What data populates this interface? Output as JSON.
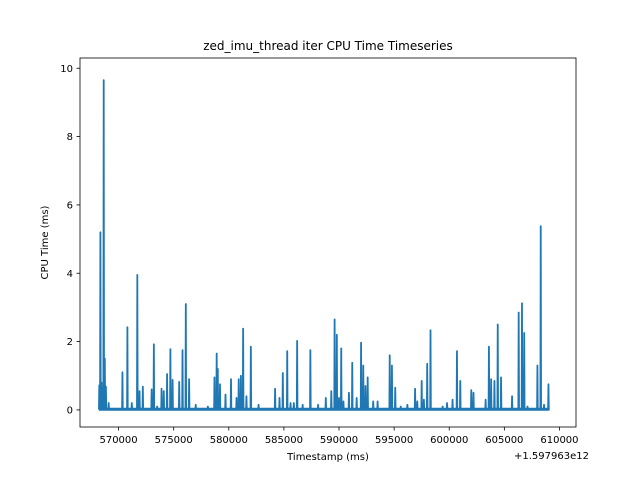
{
  "chart_data": {
    "type": "line",
    "title": "zed_imu_thread iter CPU Time Timeseries",
    "xlabel": "Timestamp (ms)",
    "ylabel": "CPU Time (ms)",
    "x_offset_label": "+1.597963e12",
    "xlim": [
      566500,
      611500
    ],
    "ylim": [
      -0.5,
      10.3
    ],
    "x_ticks": [
      570000,
      575000,
      580000,
      585000,
      590000,
      595000,
      600000,
      605000,
      610000
    ],
    "x_tick_labels": [
      "570000",
      "575000",
      "580000",
      "585000",
      "590000",
      "595000",
      "600000",
      "605000",
      "610000"
    ],
    "y_ticks": [
      0,
      2,
      4,
      6,
      8,
      10
    ],
    "y_tick_labels": [
      "0",
      "2",
      "4",
      "6",
      "8",
      "10"
    ],
    "grid": false,
    "line_color": "#1f77b4",
    "series": [
      {
        "x_range": [
          568200,
          609100
        ],
        "baseline": 0.02,
        "spikes": [
          [
            568250,
            0.72
          ],
          [
            568350,
            5.2
          ],
          [
            568450,
            0.8
          ],
          [
            568550,
            0.65
          ],
          [
            568650,
            9.65
          ],
          [
            568750,
            1.5
          ],
          [
            568850,
            0.68
          ],
          [
            569100,
            0.2
          ],
          [
            570350,
            1.1
          ],
          [
            570800,
            2.42
          ],
          [
            571200,
            0.2
          ],
          [
            571700,
            3.95
          ],
          [
            571900,
            0.55
          ],
          [
            572200,
            0.68
          ],
          [
            573000,
            0.6
          ],
          [
            573200,
            1.92
          ],
          [
            573500,
            0.1
          ],
          [
            573900,
            0.62
          ],
          [
            574100,
            0.55
          ],
          [
            574400,
            1.05
          ],
          [
            574700,
            1.78
          ],
          [
            574900,
            0.88
          ],
          [
            575500,
            0.82
          ],
          [
            575800,
            1.75
          ],
          [
            576100,
            3.1
          ],
          [
            576400,
            0.9
          ],
          [
            577000,
            0.15
          ],
          [
            578100,
            0.1
          ],
          [
            578700,
            0.95
          ],
          [
            578900,
            1.65
          ],
          [
            579000,
            1.2
          ],
          [
            579200,
            0.75
          ],
          [
            579700,
            0.45
          ],
          [
            580200,
            0.9
          ],
          [
            580700,
            0.35
          ],
          [
            580900,
            0.9
          ],
          [
            581100,
            1.0
          ],
          [
            581300,
            2.38
          ],
          [
            581600,
            0.4
          ],
          [
            582000,
            1.85
          ],
          [
            582700,
            0.15
          ],
          [
            584200,
            0.62
          ],
          [
            584600,
            0.35
          ],
          [
            584900,
            1.08
          ],
          [
            585300,
            1.72
          ],
          [
            585600,
            0.2
          ],
          [
            585900,
            0.2
          ],
          [
            586200,
            2.02
          ],
          [
            586700,
            0.15
          ],
          [
            587400,
            1.75
          ],
          [
            588100,
            0.15
          ],
          [
            588800,
            0.35
          ],
          [
            589300,
            0.55
          ],
          [
            589600,
            2.65
          ],
          [
            589800,
            2.2
          ],
          [
            590000,
            0.35
          ],
          [
            590200,
            1.8
          ],
          [
            590400,
            0.25
          ],
          [
            590900,
            0.5
          ],
          [
            591200,
            1.38
          ],
          [
            591600,
            0.35
          ],
          [
            592000,
            1.97
          ],
          [
            592200,
            1.3
          ],
          [
            592400,
            0.7
          ],
          [
            592600,
            0.95
          ],
          [
            593100,
            0.25
          ],
          [
            593500,
            0.25
          ],
          [
            594600,
            1.6
          ],
          [
            594800,
            1.3
          ],
          [
            595100,
            0.65
          ],
          [
            595600,
            0.1
          ],
          [
            596200,
            0.15
          ],
          [
            596900,
            0.62
          ],
          [
            597100,
            0.25
          ],
          [
            597500,
            0.85
          ],
          [
            597700,
            0.3
          ],
          [
            598000,
            1.35
          ],
          [
            598300,
            2.33
          ],
          [
            599400,
            0.1
          ],
          [
            599800,
            0.2
          ],
          [
            600300,
            0.3
          ],
          [
            600700,
            1.72
          ],
          [
            601000,
            0.85
          ],
          [
            602000,
            0.58
          ],
          [
            602200,
            0.5
          ],
          [
            603300,
            0.3
          ],
          [
            603600,
            1.85
          ],
          [
            603800,
            0.9
          ],
          [
            604100,
            0.85
          ],
          [
            604400,
            2.5
          ],
          [
            604700,
            0.95
          ],
          [
            605700,
            0.4
          ],
          [
            606300,
            2.85
          ],
          [
            606600,
            3.12
          ],
          [
            606800,
            2.25
          ],
          [
            607100,
            0.1
          ],
          [
            608000,
            1.3
          ],
          [
            608300,
            5.38
          ],
          [
            608600,
            0.15
          ],
          [
            609000,
            0.75
          ]
        ]
      }
    ]
  }
}
